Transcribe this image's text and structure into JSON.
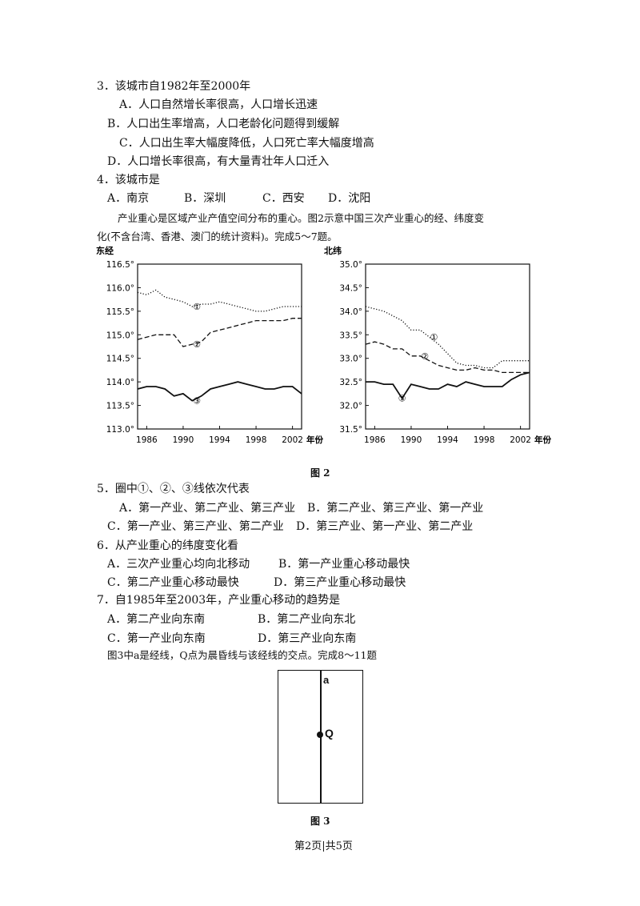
{
  "q3": {
    "stem": "3．该城市自1982年至2000年",
    "options": [
      "A．人口自然增长率很高，人口增长迅速",
      "B．人口出生率增高，人口老龄化问题得到缓解",
      "C．人口出生率大幅度降低，人口死亡率大幅度增高",
      "D．人口增长率很高，有大量青壮年人口迁入"
    ]
  },
  "q4": {
    "stem": "4．该城市是",
    "options": [
      "A．南京",
      "B．深圳",
      "C．西安",
      "D．沈阳"
    ]
  },
  "intro2": [
    "产业重心是区域产业产值空间分布的重心。图2示意中国三次产业重心的经、纬度变",
    "化(不含台湾、香港、澳门的统计资料)。完成5～7题。"
  ],
  "chart_data": [
    {
      "type": "line",
      "title": "东经",
      "xlabel": "年份",
      "x_ticks": [
        "1986",
        "1990",
        "1994",
        "1998",
        "2002"
      ],
      "y_ticks": [
        "116.5°",
        "116.0°",
        "115.5°",
        "115.0°",
        "114.5°",
        "114.0°",
        "113.5°",
        "113.0°"
      ],
      "xlim": [
        1985,
        2003
      ],
      "ylim": [
        113.0,
        116.5
      ],
      "series": [
        {
          "name": "①",
          "x": [
            1985,
            1986,
            1987,
            1988,
            1989,
            1990,
            1991,
            1992,
            1993,
            1994,
            1995,
            1996,
            1997,
            1998,
            1999,
            2000,
            2001,
            2002,
            2003
          ],
          "values": [
            115.9,
            115.85,
            115.95,
            115.8,
            115.75,
            115.7,
            115.6,
            115.65,
            115.65,
            115.7,
            115.65,
            115.6,
            115.55,
            115.5,
            115.5,
            115.55,
            115.6,
            115.6,
            115.6
          ]
        },
        {
          "name": "②",
          "x": [
            1985,
            1986,
            1987,
            1988,
            1989,
            1990,
            1991,
            1992,
            1993,
            1994,
            1995,
            1996,
            1997,
            1998,
            1999,
            2000,
            2001,
            2002,
            2003
          ],
          "values": [
            114.9,
            114.95,
            115.0,
            115.0,
            115.0,
            114.75,
            114.8,
            114.85,
            115.05,
            115.1,
            115.15,
            115.2,
            115.25,
            115.3,
            115.3,
            115.3,
            115.3,
            115.35,
            115.35
          ]
        },
        {
          "name": "③",
          "x": [
            1985,
            1986,
            1987,
            1988,
            1989,
            1990,
            1991,
            1992,
            1993,
            1994,
            1995,
            1996,
            1997,
            1998,
            1999,
            2000,
            2001,
            2002,
            2003
          ],
          "values": [
            113.85,
            113.9,
            113.9,
            113.85,
            113.7,
            113.75,
            113.6,
            113.7,
            113.85,
            113.9,
            113.95,
            114.0,
            113.95,
            113.9,
            113.85,
            113.85,
            113.9,
            113.9,
            113.75
          ]
        }
      ],
      "grid": false
    },
    {
      "type": "line",
      "title": "北纬",
      "xlabel": "年份",
      "x_ticks": [
        "1986",
        "1990",
        "1994",
        "1998",
        "2002"
      ],
      "y_ticks": [
        "35.0°",
        "34.5°",
        "34.0°",
        "33.5°",
        "33.0°",
        "32.5°",
        "32.0°",
        "31.5°"
      ],
      "xlim": [
        1985,
        2003
      ],
      "ylim": [
        31.5,
        35.0
      ],
      "series": [
        {
          "name": "①",
          "x": [
            1985,
            1986,
            1987,
            1988,
            1989,
            1990,
            1991,
            1992,
            1993,
            1994,
            1995,
            1996,
            1997,
            1998,
            1999,
            2000,
            2001,
            2002,
            2003
          ],
          "values": [
            34.1,
            34.05,
            34.0,
            33.9,
            33.8,
            33.6,
            33.6,
            33.45,
            33.3,
            33.1,
            32.9,
            32.85,
            32.85,
            32.8,
            32.8,
            32.95,
            32.95,
            32.95,
            32.95
          ]
        },
        {
          "name": "②",
          "x": [
            1985,
            1986,
            1987,
            1988,
            1989,
            1990,
            1991,
            1992,
            1993,
            1994,
            1995,
            1996,
            1997,
            1998,
            1999,
            2000,
            2001,
            2002,
            2003
          ],
          "values": [
            33.3,
            33.35,
            33.3,
            33.2,
            33.2,
            33.05,
            33.05,
            32.95,
            32.85,
            32.8,
            32.75,
            32.75,
            32.8,
            32.75,
            32.75,
            32.7,
            32.7,
            32.7,
            32.7
          ]
        },
        {
          "name": "③",
          "x": [
            1985,
            1986,
            1987,
            1988,
            1989,
            1990,
            1991,
            1992,
            1993,
            1994,
            1995,
            1996,
            1997,
            1998,
            1999,
            2000,
            2001,
            2002,
            2003
          ],
          "values": [
            32.5,
            32.5,
            32.45,
            32.45,
            32.15,
            32.45,
            32.4,
            32.35,
            32.35,
            32.45,
            32.4,
            32.5,
            32.45,
            32.4,
            32.4,
            32.4,
            32.55,
            32.65,
            32.7
          ]
        }
      ],
      "grid": false
    }
  ],
  "fig2_caption": "图 2",
  "q5": {
    "stem": "5．圈中①、②、③线依次代表",
    "options_row1": [
      "A．第一产业、第二产业、第三产业",
      "B．第二产业、第三产业、第一产业"
    ],
    "options_row2": [
      "C．第一产业、第三产业、第二产业",
      "D．第三产业、第一产业、第二产业"
    ]
  },
  "q6": {
    "stem": "6．从产业重心的纬度变化看",
    "options_row1": [
      "A．三次产业重心均向北移动",
      "B．第一产业重心移动最快"
    ],
    "options_row2": [
      "C．第二产业重心移动最快",
      "D．第三产业重心移动最快"
    ]
  },
  "q7": {
    "stem": "7．自1985年至2003年，产业重心移动的趋势是",
    "options_row1": [
      "A．第二产业向东南",
      "B．第二产业向东北"
    ],
    "options_row2": [
      "C．第一产业向东南",
      "D．第三产业向东南"
    ]
  },
  "intro3": "图3中a是经线，Q点为晨昏线与该经线的交点。完成8～11题",
  "fig3": {
    "label_a": "a",
    "label_q": "Q",
    "caption": "图 3"
  },
  "footer": "第2页|共5页"
}
